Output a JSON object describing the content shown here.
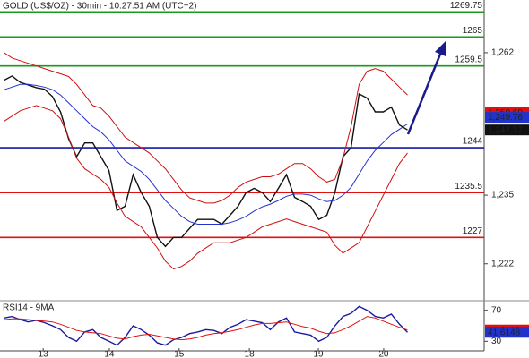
{
  "chart_data": [
    {
      "type": "line",
      "title": "GOLD (US$/OZ) - 30min - 10:27:51 AM (UTC+2)",
      "x": [
        1,
        3,
        5,
        7,
        9,
        11,
        13,
        15,
        17,
        19,
        21,
        23,
        25,
        27,
        29,
        31,
        33,
        35,
        37,
        39,
        41,
        43,
        45,
        47,
        49,
        51,
        53,
        55,
        57,
        59,
        61,
        63,
        65,
        67,
        69,
        71,
        73,
        75,
        77,
        79,
        81,
        83,
        85,
        87,
        89,
        91,
        93,
        95,
        97,
        99,
        101
      ],
      "xlim": [
        0,
        120
      ],
      "xticks": [
        {
          "value": 10.7,
          "label": "13"
        },
        {
          "value": 27.1,
          "label": "14"
        },
        {
          "value": 44.4,
          "label": "15"
        },
        {
          "value": 61.8,
          "label": "18"
        },
        {
          "value": 78.9,
          "label": "19"
        },
        {
          "value": 95.1,
          "label": "20"
        }
      ],
      "ylim": [
        1215,
        1272
      ],
      "yticks": [
        {
          "value": 1222,
          "label": "1,222"
        },
        {
          "value": 1235,
          "label": "1,235"
        },
        {
          "value": 1262,
          "label": "1,262"
        }
      ],
      "series": [
        {
          "color": "#111111",
          "values": [
            1256.8,
            1257.6,
            1256.4,
            1255.9,
            1255.4,
            1255.1,
            1253.7,
            1250.8,
            1245.7,
            1242.3,
            1244.9,
            1244.9,
            1242.3,
            1239.7,
            1232.1,
            1232.9,
            1238.9,
            1235.5,
            1232.9,
            1227.0,
            1225.3,
            1227.0,
            1227.0,
            1228.7,
            1230.4,
            1230.4,
            1230.4,
            1229.5,
            1231.2,
            1232.9,
            1235.5,
            1236.3,
            1235.5,
            1233.8,
            1236.3,
            1238.9,
            1234.6,
            1233.8,
            1232.9,
            1230.4,
            1231.2,
            1235.5,
            1242.3,
            1244.0,
            1254.2,
            1253.4,
            1250.8,
            1250.8,
            1251.7,
            1248.3,
            1247.37
          ]
        },
        {
          "color": "#2233cc",
          "values": [
            1255,
            1255.5,
            1256,
            1256,
            1255.8,
            1255.5,
            1255,
            1254,
            1252.5,
            1251,
            1249.5,
            1248,
            1247,
            1245.5,
            1243.5,
            1241.5,
            1240.5,
            1239.5,
            1238,
            1236,
            1234,
            1232.5,
            1231,
            1230,
            1229.5,
            1229.5,
            1229.5,
            1229.5,
            1229.8,
            1230.3,
            1231,
            1232,
            1232.8,
            1233.3,
            1234,
            1234.8,
            1235.2,
            1235.2,
            1235,
            1234.3,
            1233.8,
            1234,
            1235,
            1236.5,
            1239,
            1241.5,
            1243.5,
            1245,
            1246.5,
            1247.5,
            1248.5
          ]
        },
        {
          "color": "#cc1111",
          "values": [
            1262,
            1261,
            1260.5,
            1260,
            1259.5,
            1259,
            1258.5,
            1258,
            1257.5,
            1256,
            1254,
            1252,
            1251.5,
            1250,
            1248,
            1246,
            1245,
            1244,
            1243,
            1241.5,
            1240,
            1238,
            1236,
            1234.5,
            1234,
            1233.5,
            1233.5,
            1234,
            1235,
            1236.5,
            1237.5,
            1238,
            1238.5,
            1238.5,
            1239,
            1240,
            1241,
            1241,
            1240,
            1238.5,
            1237.5,
            1238,
            1242,
            1248,
            1256,
            1258.5,
            1259,
            1258.5,
            1257,
            1255.5,
            1254
          ]
        },
        {
          "color": "#cc1111",
          "values": [
            1249,
            1250,
            1251,
            1251.5,
            1252,
            1251.5,
            1251,
            1249.5,
            1246,
            1242,
            1240,
            1239,
            1238,
            1236.5,
            1233.5,
            1231,
            1230,
            1229,
            1227,
            1225,
            1222.5,
            1221,
            1221.5,
            1222.5,
            1224,
            1225,
            1226,
            1226,
            1226,
            1226.5,
            1227,
            1228,
            1229,
            1229.5,
            1230,
            1230.5,
            1230,
            1229.5,
            1229,
            1228.5,
            1228,
            1225.5,
            1224,
            1225,
            1226,
            1229,
            1232,
            1235,
            1238,
            1241,
            1243
          ]
        }
      ],
      "levels": [
        {
          "value": 1269.75,
          "color": "#1a9a1a"
        },
        {
          "value": 1265,
          "color": "#1a9a1a"
        },
        {
          "value": 1259.5,
          "color": "#1a9a1a"
        },
        {
          "value": 1244,
          "color": "#1a1aa0"
        },
        {
          "value": 1235.5,
          "color": "#e01010"
        },
        {
          "value": 1227,
          "color": "#e01010"
        }
      ],
      "markers": [
        {
          "value": 1250.69,
          "label": "1,250.69",
          "color": "#e01010"
        },
        {
          "value": 1249.76,
          "label": "1,249.76",
          "color": "#2233cc"
        },
        {
          "value": 1247.37,
          "label": "1,247.37",
          "color": "#111111"
        }
      ]
    },
    {
      "type": "line",
      "title": "RSI14 - 9MA",
      "x": [
        1,
        3,
        5,
        7,
        9,
        11,
        13,
        15,
        17,
        19,
        21,
        23,
        25,
        27,
        29,
        31,
        33,
        35,
        37,
        39,
        41,
        43,
        45,
        47,
        49,
        51,
        53,
        55,
        57,
        59,
        61,
        63,
        65,
        67,
        69,
        71,
        73,
        75,
        77,
        79,
        81,
        83,
        85,
        87,
        89,
        91,
        93,
        95,
        97,
        99,
        101
      ],
      "xlim": [
        0,
        120
      ],
      "ylim": [
        20,
        80
      ],
      "yticks": [
        70,
        30
      ],
      "series": [
        {
          "color": "#1a1aa0",
          "values": [
            60,
            62,
            58,
            55,
            57,
            54,
            50,
            45,
            35,
            30,
            42,
            45,
            35,
            30,
            25,
            35,
            50,
            45,
            38,
            28,
            25,
            32,
            35,
            40,
            42,
            45,
            44,
            40,
            48,
            52,
            58,
            56,
            54,
            45,
            55,
            60,
            42,
            40,
            38,
            30,
            35,
            50,
            62,
            66,
            75,
            70,
            62,
            60,
            65,
            52,
            41.6148
          ]
        },
        {
          "color": "#e01010",
          "values": [
            58,
            59,
            59,
            58,
            57,
            56,
            55,
            52,
            48,
            44,
            42,
            41,
            40,
            37,
            34,
            33,
            36,
            38,
            39,
            37,
            35,
            33,
            32,
            33,
            35,
            38,
            40,
            41,
            43,
            45,
            48,
            51,
            53,
            53,
            54,
            55,
            52,
            49,
            47,
            43,
            40,
            41,
            45,
            50,
            56,
            62,
            60,
            56,
            52,
            48,
            44.5463
          ]
        }
      ],
      "markers": [
        {
          "value": 44.5463,
          "color": "#e01010"
        },
        {
          "value": 41.6148,
          "color": "#2233cc"
        }
      ]
    }
  ]
}
